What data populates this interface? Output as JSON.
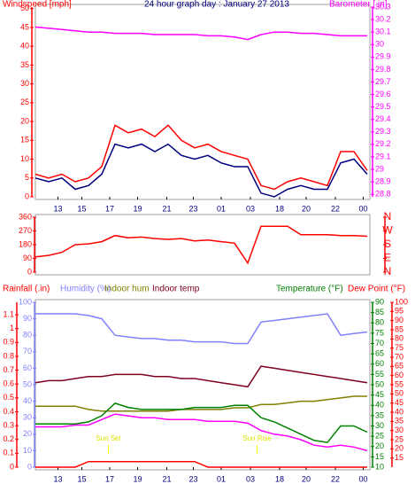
{
  "chart_data": [
    {
      "type": "line",
      "title": "24 hour graph day : January 27 2013",
      "y_label": "Windspeed [mph]",
      "y2_label": "Barometer [.in]",
      "x": [
        0,
        1,
        2,
        3,
        4,
        5,
        6,
        7,
        8,
        9,
        10,
        11,
        12,
        13,
        14,
        15,
        16,
        17,
        18,
        19,
        20,
        21,
        22,
        23,
        24,
        25
      ],
      "xlim": [
        0,
        25.2
      ],
      "xticks": [
        {
          "value": 1.7,
          "label": "13"
        },
        {
          "value": 3.5,
          "label": "15"
        },
        {
          "value": 5.6,
          "label": "17"
        },
        {
          "value": 7.7,
          "label": "19"
        },
        {
          "value": 9.9,
          "label": "21"
        },
        {
          "value": 11.9,
          "label": "23"
        },
        {
          "value": 14,
          "label": "01"
        },
        {
          "value": 16.2,
          "label": "03"
        },
        {
          "value": 18.4,
          "label": "18"
        },
        {
          "value": 20.4,
          "label": "20"
        },
        {
          "value": 22.6,
          "label": "22"
        },
        {
          "value": 24.7,
          "label": "00"
        }
      ],
      "ylim": [
        0,
        50.4
      ],
      "yticks": [
        0,
        5,
        10,
        15,
        20,
        25,
        30,
        35,
        40,
        45,
        50
      ],
      "y2lim": [
        28.78,
        30.3
      ],
      "y2ticks": [
        28.8,
        28.9,
        29,
        29.1,
        29.2,
        29.3,
        29.4,
        29.5,
        29.6,
        29.7,
        29.8,
        29.9,
        30,
        30.1,
        30.2,
        30.3
      ],
      "series": [
        {
          "color": "#ff0000",
          "values": [
            6,
            5,
            6,
            4,
            5,
            8,
            19,
            17,
            18,
            16,
            19,
            15,
            13,
            14,
            12,
            11,
            10,
            3,
            2,
            4,
            5,
            4,
            3,
            12,
            12,
            7
          ]
        },
        {
          "color": "#000080",
          "values": [
            5,
            4,
            5,
            2,
            3,
            6,
            14,
            13,
            14,
            12,
            14,
            11,
            10,
            11,
            9,
            8,
            8,
            1,
            0,
            2,
            3,
            2,
            2,
            9,
            10,
            6
          ]
        },
        {
          "color": "#ff00ff",
          "axis": "y2",
          "values": [
            30.14,
            30.13,
            30.12,
            30.11,
            30.1,
            30.1,
            30.09,
            30.09,
            30.09,
            30.08,
            30.08,
            30.08,
            30.08,
            30.07,
            30.07,
            30.06,
            30.04,
            30.08,
            30.1,
            30.1,
            30.09,
            30.09,
            30.08,
            30.07,
            30.07,
            30.07
          ]
        }
      ]
    },
    {
      "type": "line",
      "x": [
        0,
        1,
        2,
        3,
        4,
        5,
        6,
        7,
        8,
        9,
        10,
        11,
        12,
        13,
        14,
        15,
        16,
        17,
        18,
        19,
        20,
        21,
        22,
        23,
        24,
        25
      ],
      "xlim": [
        0,
        25.2
      ],
      "ylim": [
        0,
        360
      ],
      "yticks": [
        0,
        90,
        180,
        270,
        360
      ],
      "y2lim": [
        0,
        360
      ],
      "y2ticks": [
        {
          "value": 0,
          "label": "N"
        },
        {
          "value": 90,
          "label": "E"
        },
        {
          "value": 180,
          "label": "S"
        },
        {
          "value": 270,
          "label": "W"
        },
        {
          "value": 360,
          "label": "N"
        }
      ],
      "series": [
        {
          "color": "#ff0000",
          "values": [
            100,
            110,
            130,
            180,
            185,
            200,
            240,
            225,
            230,
            220,
            215,
            220,
            205,
            210,
            200,
            190,
            60,
            300,
            300,
            300,
            245,
            245,
            245,
            240,
            240,
            235
          ]
        }
      ]
    },
    {
      "type": "line",
      "x": [
        0,
        1,
        2,
        3,
        4,
        5,
        6,
        7,
        8,
        9,
        10,
        11,
        12,
        13,
        14,
        15,
        16,
        17,
        18,
        19,
        20,
        21,
        22,
        23,
        24,
        25
      ],
      "xlim": [
        0,
        25.2
      ],
      "xticks": [
        {
          "value": 1.7,
          "label": "13"
        },
        {
          "value": 3.5,
          "label": "15"
        },
        {
          "value": 5.6,
          "label": "17"
        },
        {
          "value": 7.7,
          "label": "19"
        },
        {
          "value": 9.9,
          "label": "21"
        },
        {
          "value": 11.9,
          "label": "23"
        },
        {
          "value": 14,
          "label": "01"
        },
        {
          "value": 16.2,
          "label": "03"
        },
        {
          "value": 18.4,
          "label": "18"
        },
        {
          "value": 20.4,
          "label": "20"
        },
        {
          "value": 22.6,
          "label": "22"
        },
        {
          "value": 24.7,
          "label": "00"
        }
      ],
      "ylim": [
        0,
        1.19
      ],
      "yticks": [
        0,
        0.1,
        0.2,
        0.3,
        0.4,
        0.5,
        0.6,
        0.7,
        0.8,
        0.9,
        1,
        1.1
      ],
      "y3lim": [
        0,
        100
      ],
      "y3ticks": [
        0,
        10,
        20,
        30,
        40,
        50,
        60,
        70,
        80,
        90,
        100
      ],
      "y2lim": [
        10,
        90
      ],
      "y2ticks": [
        10,
        15,
        20,
        25,
        30,
        35,
        40,
        45,
        50,
        55,
        60,
        65,
        70,
        75,
        80,
        85,
        90
      ],
      "y4lim": [
        10,
        100
      ],
      "y4ticks": [
        15,
        20,
        25,
        30,
        35,
        40,
        45,
        50,
        55,
        60,
        65,
        70,
        75,
        80,
        85,
        90,
        95,
        100
      ],
      "annotations": [
        {
          "text": "Sun Set",
          "x": 5.5
        },
        {
          "text": "Sun Rise",
          "x": 16.7
        }
      ],
      "series": [
        {
          "name": "Rainfall (.in)",
          "color": "#ff0000",
          "axis": "y",
          "values": [
            0,
            0,
            0,
            0,
            0.04,
            0.04,
            0.04,
            0.04,
            0.04,
            0.04,
            0.04,
            0.04,
            0.04,
            0,
            0,
            0,
            0,
            0,
            0,
            0,
            0,
            0,
            0,
            0,
            0,
            0
          ]
        },
        {
          "name": "Humidity (%)",
          "color": "#8080ff",
          "axis": "y3",
          "values": [
            93,
            93,
            93,
            93,
            92,
            90,
            80,
            79,
            78,
            78,
            77,
            77,
            76,
            76,
            76,
            75,
            75,
            88,
            89,
            90,
            91,
            92,
            93,
            80,
            81,
            82
          ]
        },
        {
          "name": "Indoor hum",
          "color": "#808000",
          "axis": "y3",
          "values": [
            37,
            37,
            37,
            37,
            35,
            34,
            34,
            34,
            34,
            34,
            34,
            35,
            35,
            35,
            35,
            36,
            36,
            38,
            38,
            39,
            40,
            40,
            41,
            42,
            43,
            43
          ]
        },
        {
          "name": "Indoor temp",
          "color": "#800020",
          "axis": "y2",
          "values": [
            51,
            52,
            52,
            53,
            54,
            54,
            55,
            55,
            55,
            54,
            54,
            53,
            53,
            52,
            51,
            50,
            49,
            59,
            58,
            57,
            56,
            55,
            54,
            53,
            52,
            51
          ]
        },
        {
          "name": "Temperature (°F)",
          "color": "#008000",
          "axis": "y2",
          "values": [
            31,
            31,
            31,
            31,
            32,
            35,
            41,
            39,
            38,
            38,
            38,
            38,
            39,
            39,
            39,
            40,
            40,
            34,
            32,
            29,
            26,
            23,
            22,
            30,
            30,
            27
          ]
        },
        {
          "name": "Dew Point (°F)",
          "color": "#ff00ff",
          "axis": "y4",
          "values": [
            32,
            32,
            32,
            33,
            33,
            36,
            39,
            38,
            37,
            37,
            36,
            36,
            36,
            35,
            35,
            35,
            34,
            30,
            28,
            27,
            25,
            22,
            21,
            22,
            21,
            19
          ]
        }
      ]
    }
  ]
}
